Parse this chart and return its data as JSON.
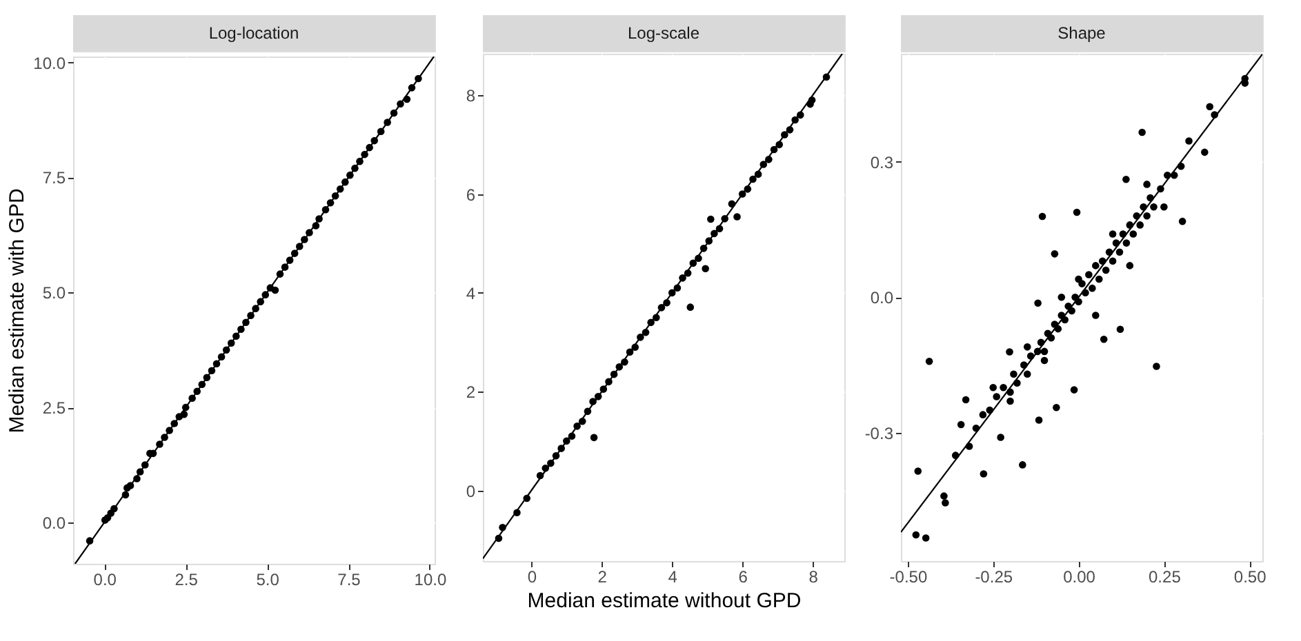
{
  "chart_data": [
    {
      "type": "scatter",
      "title": "Log-location",
      "ylabel": "Median estimate with GPD",
      "xlim": [
        -0.96,
        10.15
      ],
      "ylim": [
        -0.9,
        10.13
      ],
      "xticks": [
        {
          "value": 0,
          "label": "0.0"
        },
        2.5,
        {
          "value": 5,
          "label": "5.0"
        },
        7.5,
        {
          "value": 10,
          "label": "10.0"
        }
      ],
      "yticks": [
        {
          "value": 0,
          "label": "0.0"
        },
        2.5,
        {
          "value": 5,
          "label": "5.0"
        },
        7.5,
        {
          "value": 10,
          "label": "10.0"
        }
      ],
      "grid": true,
      "series": [
        {
          "marker": "circle",
          "color": "#000000",
          "x": [
            -0.45,
            0.02,
            0.1,
            0.2,
            0.3,
            0.65,
            0.7,
            0.8,
            1.0,
            1.1,
            1.25,
            1.4,
            1.5,
            1.7,
            1.85,
            2.0,
            2.15,
            2.3,
            2.45,
            2.5,
            2.7,
            2.85,
            3.0,
            3.15,
            3.3,
            3.45,
            3.6,
            3.75,
            3.9,
            4.05,
            4.2,
            4.35,
            4.5,
            4.65,
            4.8,
            4.95,
            5.1,
            5.25,
            5.4,
            5.55,
            5.7,
            5.85,
            6.0,
            6.15,
            6.3,
            6.5,
            6.6,
            6.8,
            6.95,
            7.1,
            7.25,
            7.4,
            7.55,
            7.7,
            7.85,
            8.0,
            8.15,
            8.3,
            8.5,
            8.7,
            8.9,
            9.1,
            9.3,
            9.45,
            9.65
          ],
          "values": [
            -0.4,
            0.05,
            0.1,
            0.2,
            0.3,
            0.6,
            0.75,
            0.8,
            0.95,
            1.1,
            1.25,
            1.5,
            1.5,
            1.7,
            1.85,
            2.0,
            2.15,
            2.3,
            2.35,
            2.5,
            2.7,
            2.85,
            3.0,
            3.15,
            3.3,
            3.45,
            3.6,
            3.75,
            3.9,
            4.05,
            4.2,
            4.35,
            4.5,
            4.65,
            4.8,
            4.95,
            5.1,
            5.05,
            5.4,
            5.55,
            5.7,
            5.85,
            6.0,
            6.15,
            6.3,
            6.45,
            6.6,
            6.8,
            6.95,
            7.1,
            7.25,
            7.4,
            7.55,
            7.7,
            7.85,
            8.0,
            8.15,
            8.3,
            8.5,
            8.7,
            8.9,
            9.1,
            9.2,
            9.45,
            9.65
          ]
        },
        {
          "type": "line",
          "color": "#000000",
          "line_style": "solid",
          "x": [
            -0.9,
            10.13
          ],
          "values": [
            -0.9,
            10.13
          ]
        }
      ]
    },
    {
      "type": "scatter",
      "title": "Log-scale",
      "xlabel": "Median estimate without GPD",
      "xlim": [
        -1.38,
        8.9
      ],
      "ylim": [
        -1.43,
        8.84
      ],
      "xticks": [
        0,
        2,
        4,
        6,
        8
      ],
      "yticks": [
        0,
        2,
        4,
        6,
        8
      ],
      "grid": true,
      "series": [
        {
          "marker": "circle",
          "color": "#000000",
          "x": [
            -0.93,
            -0.82,
            -0.41,
            -0.13,
            0.25,
            0.4,
            0.55,
            0.7,
            0.85,
            1.0,
            1.15,
            1.3,
            1.45,
            1.6,
            1.78,
            1.75,
            1.9,
            2.05,
            2.2,
            2.35,
            2.5,
            2.65,
            2.8,
            2.95,
            3.1,
            3.25,
            3.4,
            3.55,
            3.7,
            3.85,
            4.0,
            4.15,
            4.3,
            4.52,
            4.45,
            4.6,
            4.75,
            4.95,
            4.9,
            5.1,
            5.05,
            5.2,
            5.35,
            5.5,
            5.7,
            5.85,
            6.0,
            6.15,
            6.3,
            6.45,
            6.6,
            6.75,
            6.9,
            7.05,
            7.2,
            7.35,
            7.5,
            7.65,
            7.93,
            7.98,
            8.39
          ],
          "values": [
            -0.97,
            -0.75,
            -0.45,
            -0.16,
            0.3,
            0.45,
            0.55,
            0.7,
            0.85,
            1.0,
            1.1,
            1.3,
            1.4,
            1.6,
            1.07,
            1.8,
            1.9,
            2.05,
            2.2,
            2.35,
            2.5,
            2.6,
            2.8,
            2.9,
            3.1,
            3.2,
            3.4,
            3.5,
            3.7,
            3.8,
            4.0,
            4.1,
            4.3,
            3.71,
            4.4,
            4.6,
            4.7,
            4.49,
            4.9,
            5.49,
            5.05,
            5.2,
            5.3,
            5.5,
            5.8,
            5.54,
            6.0,
            6.1,
            6.3,
            6.4,
            6.6,
            6.7,
            6.9,
            7.0,
            7.2,
            7.3,
            7.5,
            7.6,
            7.82,
            7.9,
            8.37
          ]
        },
        {
          "type": "line",
          "color": "#000000",
          "line_style": "solid",
          "x": [
            -1.38,
            8.84
          ],
          "values": [
            -1.38,
            8.84
          ]
        }
      ]
    },
    {
      "type": "scatter",
      "title": "Shape",
      "xlim": [
        -0.52,
        0.538
      ],
      "ylim": [
        -0.584,
        0.539
      ],
      "xticks": [
        {
          "value": -0.5,
          "label": "-0.50"
        },
        -0.25,
        {
          "value": 0,
          "label": "0.00"
        },
        0.25,
        {
          "value": 0.5,
          "label": "0.50"
        }
      ],
      "yticks": [
        {
          "value": -0.3,
          "label": "-0.3"
        },
        {
          "value": 0,
          "label": "0.0"
        },
        {
          "value": 0.3,
          "label": "0.3"
        }
      ],
      "grid": true,
      "series": [
        {
          "marker": "circle",
          "color": "#000000",
          "x": [
            0.186,
            -0.005,
            -0.106,
            -0.07,
            -0.437,
            0.228,
            -0.164,
            -0.47,
            -0.476,
            -0.447,
            -0.39,
            -0.394,
            0.487,
            0.487,
            0.384,
            0.398,
            0.304,
            0.139,
            -0.278,
            -0.116,
            0.074,
            0.122,
            -0.013,
            -0.065,
            -0.228,
            -0.344,
            -0.33,
            -0.202,
            -0.119,
            0.369,
            0.323,
            -0.36,
            -0.32,
            -0.3,
            -0.28,
            -0.26,
            -0.24,
            -0.22,
            -0.2,
            -0.19,
            -0.18,
            -0.16,
            -0.15,
            -0.14,
            -0.12,
            -0.11,
            -0.1,
            -0.09,
            -0.08,
            -0.07,
            -0.06,
            -0.05,
            -0.04,
            -0.03,
            -0.02,
            -0.01,
            0.0,
            0.01,
            0.02,
            0.03,
            0.04,
            0.05,
            0.06,
            0.07,
            0.08,
            0.09,
            0.1,
            0.11,
            0.12,
            0.13,
            0.14,
            0.15,
            0.16,
            0.17,
            0.18,
            0.19,
            0.2,
            0.21,
            0.22,
            0.24,
            0.26,
            0.28,
            0.3,
            -0.25,
            -0.2,
            -0.15,
            -0.1,
            -0.05,
            0.0,
            0.05,
            0.1,
            0.15,
            0.2,
            0.25
          ],
          "values": [
            0.365,
            0.188,
            0.179,
            0.096,
            -0.142,
            -0.153,
            -0.371,
            -0.385,
            -0.526,
            -0.533,
            -0.455,
            -0.44,
            0.484,
            0.474,
            0.422,
            0.404,
            0.168,
            0.261,
            -0.391,
            -0.272,
            -0.093,
            -0.071,
            -0.205,
            -0.244,
            -0.31,
            -0.282,
            -0.227,
            -0.121,
            -0.013,
            0.321,
            0.346,
            -0.35,
            -0.33,
            -0.29,
            -0.26,
            -0.25,
            -0.22,
            -0.2,
            -0.21,
            -0.17,
            -0.19,
            -0.15,
            -0.17,
            -0.13,
            -0.12,
            -0.1,
            -0.12,
            -0.08,
            -0.09,
            -0.06,
            -0.07,
            -0.04,
            -0.05,
            -0.02,
            -0.03,
            0.0,
            -0.01,
            0.03,
            0.01,
            0.05,
            0.02,
            0.07,
            0.04,
            0.08,
            0.06,
            0.1,
            0.08,
            0.12,
            0.1,
            0.14,
            0.12,
            0.16,
            0.14,
            0.18,
            0.16,
            0.2,
            0.18,
            0.22,
            0.2,
            0.24,
            0.27,
            0.27,
            0.29,
            -0.2,
            -0.23,
            -0.11,
            -0.14,
            0.0,
            0.04,
            -0.04,
            0.14,
            0.07,
            0.25,
            0.2
          ]
        },
        {
          "type": "line",
          "color": "#000000",
          "line_style": "solid",
          "x": [
            -0.52,
            0.538
          ],
          "values": [
            -0.52,
            0.538
          ]
        }
      ]
    }
  ]
}
